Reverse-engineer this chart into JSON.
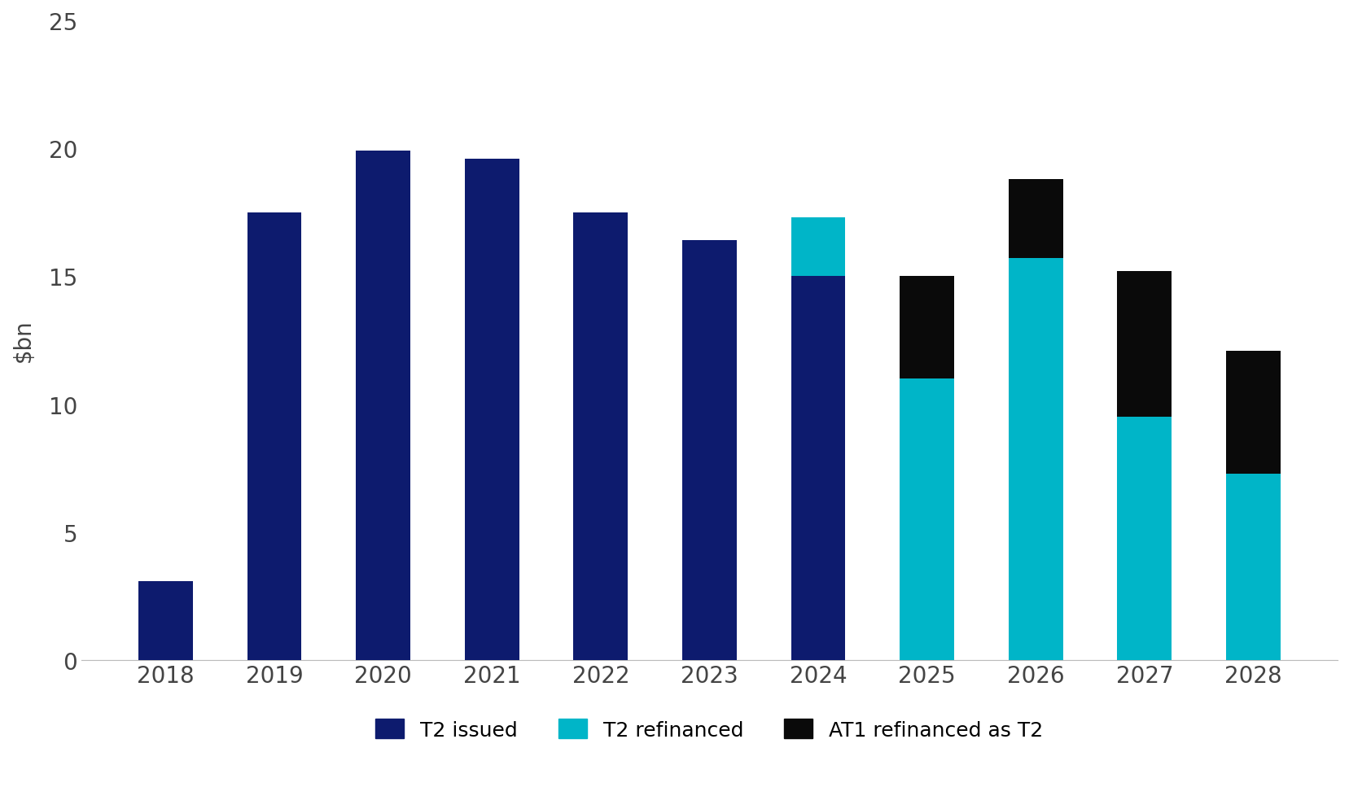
{
  "years": [
    2018,
    2019,
    2020,
    2021,
    2022,
    2023,
    2024,
    2025,
    2026,
    2027,
    2028
  ],
  "t2_issued": [
    3.1,
    17.5,
    19.9,
    19.6,
    17.5,
    16.4,
    15.0,
    0.0,
    0.0,
    0.0,
    0.0
  ],
  "t2_refinanced": [
    0.0,
    0.0,
    0.0,
    0.0,
    0.0,
    0.0,
    2.3,
    11.0,
    15.7,
    9.5,
    7.3
  ],
  "at1_refinanced": [
    0.0,
    0.0,
    0.0,
    0.0,
    0.0,
    0.0,
    0.0,
    4.0,
    3.1,
    5.7,
    4.8
  ],
  "color_t2_issued": "#0d1b6e",
  "color_t2_refinanced": "#00b5c8",
  "color_at1_refinanced": "#0a0a0a",
  "ylabel": "$bn",
  "ylim": [
    0,
    25
  ],
  "yticks": [
    0,
    5,
    10,
    15,
    20,
    25
  ],
  "bar_width": 0.5,
  "legend_labels": [
    "T2 issued",
    "T2 refinanced",
    "AT1 refinanced as T2"
  ],
  "background_color": "#ffffff",
  "tick_fontsize": 20,
  "ylabel_fontsize": 20,
  "legend_fontsize": 18
}
